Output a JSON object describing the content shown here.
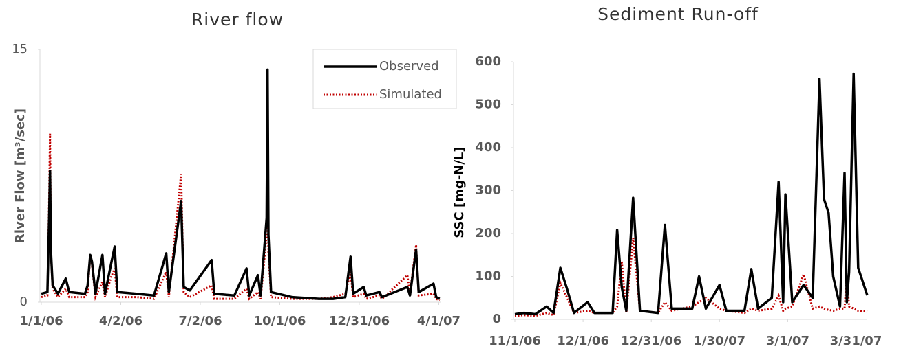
{
  "chart_data": [
    {
      "type": "line",
      "title": "River flow",
      "ylabel": "River Flow [m³/sec]",
      "x": [
        "1/1/06",
        "1/8/06",
        "1/10/06",
        "1/11/06",
        "1/12/06",
        "1/14/06",
        "1/20/06",
        "1/29/06",
        "2/2/06",
        "2/20/06",
        "2/23/06",
        "2/26/06",
        "2/28/06",
        "3/4/06",
        "3/12/06",
        "3/15/06",
        "3/22/06",
        "3/26/06",
        "3/29/06",
        "4/20/06",
        "5/10/06",
        "5/24/06",
        "5/27/06",
        "6/10/06",
        "6/13/06",
        "6/20/06",
        "7/15/06",
        "7/18/06",
        "8/10/06",
        "8/24/06",
        "8/27/06",
        "9/6/06",
        "9/9/06",
        "9/16/06",
        "9/17/06",
        "9/18/06",
        "9/21/06",
        "10/15/06",
        "11/15/06",
        "12/1/06",
        "12/15/06",
        "12/21/06",
        "12/24/06",
        "1/5/07",
        "1/8/07",
        "1/23/07",
        "1/26/07",
        "2/24/07",
        "2/27/07",
        "3/6/07",
        "3/9/07",
        "3/26/07",
        "3/29/07",
        "4/2/07"
      ],
      "series": [
        {
          "name": "Observed",
          "color": "#000000",
          "style": "solid",
          "values": [
            0.5,
            0.6,
            5,
            7.8,
            3,
            1,
            0.5,
            1.4,
            0.6,
            0.5,
            1.0,
            2.8,
            2.4,
            0.5,
            2.8,
            0.5,
            2.3,
            3.3,
            0.6,
            0.5,
            0.4,
            2.9,
            0.6,
            6.0,
            0.9,
            0.7,
            2.5,
            0.5,
            0.4,
            2.0,
            0.4,
            1.6,
            0.4,
            5,
            13.8,
            4,
            0.6,
            0.3,
            0.2,
            0.2,
            0.3,
            2.7,
            0.5,
            0.9,
            0.4,
            0.6,
            0.3,
            0.9,
            0.4,
            3.1,
            0.6,
            1.1,
            0.3,
            0.2
          ]
        },
        {
          "name": "Simulated",
          "color": "#c00000",
          "style": "dotted",
          "values": [
            0.3,
            0.4,
            6,
            10.0,
            3,
            0.8,
            0.3,
            0.8,
            0.3,
            0.3,
            0.6,
            2.8,
            2.2,
            0.3,
            1.2,
            0.3,
            1.5,
            2.0,
            0.3,
            0.3,
            0.2,
            1.8,
            0.3,
            7.6,
            0.6,
            0.3,
            1.0,
            0.2,
            0.2,
            0.8,
            0.2,
            0.6,
            0.2,
            4,
            12.4,
            3,
            0.3,
            0.2,
            0.2,
            0.3,
            0.5,
            1.8,
            0.3,
            0.5,
            0.2,
            0.4,
            0.2,
            1.6,
            0.5,
            3.4,
            0.4,
            0.5,
            0.2,
            0.1
          ]
        }
      ],
      "xlim": [
        "1/1/06",
        "4/3/07"
      ],
      "xticks": [
        "1/1/06",
        "4/2/06",
        "7/2/06",
        "10/1/06",
        "12/31/06",
        "4/1/07"
      ],
      "ylim": [
        0,
        15
      ],
      "yticks": [
        0,
        15
      ],
      "legend": "upper right"
    },
    {
      "type": "line",
      "title": "Sediment Run-off",
      "ylabel": "SSC [mg-N/L]",
      "x": [
        "11/1/06",
        "11/5/06",
        "11/10/06",
        "11/15/06",
        "11/18/06",
        "11/21/06",
        "11/24/06",
        "11/27/06",
        "12/3/06",
        "12/6/06",
        "12/14/06",
        "12/16/06",
        "12/18/06",
        "12/20/06",
        "12/23/06",
        "12/26/06",
        "1/3/07",
        "1/6/07",
        "1/9/07",
        "1/18/07",
        "1/21/07",
        "1/24/07",
        "1/30/07",
        "2/2/07",
        "2/10/07",
        "2/13/07",
        "2/16/07",
        "2/22/07",
        "2/25/07",
        "2/27/07",
        "2/28/07",
        "3/3/07",
        "3/8/07",
        "3/12/07",
        "3/15/07",
        "3/17/07",
        "3/19/07",
        "3/21/07",
        "3/24/07",
        "3/26/07",
        "3/27/07",
        "3/28/07",
        "3/30/07",
        "4/1/07",
        "4/5/07"
      ],
      "series": [
        {
          "name": "Observed",
          "color": "#000000",
          "style": "solid",
          "values": [
            12,
            15,
            12,
            30,
            15,
            120,
            70,
            15,
            40,
            15,
            15,
            208,
            75,
            20,
            283,
            20,
            15,
            220,
            25,
            25,
            100,
            25,
            80,
            20,
            20,
            117,
            25,
            50,
            320,
            40,
            291,
            40,
            80,
            50,
            560,
            280,
            248,
            100,
            30,
            341,
            40,
            110,
            572,
            120,
            56
          ]
        },
        {
          "name": "Simulated",
          "color": "#c00000",
          "style": "dotted",
          "values": [
            8,
            10,
            8,
            15,
            10,
            85,
            50,
            15,
            20,
            15,
            15,
            30,
            135,
            15,
            190,
            20,
            15,
            40,
            20,
            30,
            40,
            50,
            25,
            20,
            15,
            25,
            20,
            25,
            55,
            20,
            25,
            30,
            105,
            25,
            30,
            25,
            22,
            20,
            25,
            25,
            100,
            30,
            25,
            20,
            18
          ]
        }
      ],
      "xlim": [
        "11/1/06",
        "4/5/07"
      ],
      "xticks": [
        "11/1/06",
        "12/1/06",
        "12/31/06",
        "1/30/07",
        "3/1/07",
        "3/31/07"
      ],
      "ylim": [
        0,
        600
      ],
      "yticks": [
        0,
        100,
        200,
        300,
        400,
        500,
        600
      ]
    }
  ]
}
